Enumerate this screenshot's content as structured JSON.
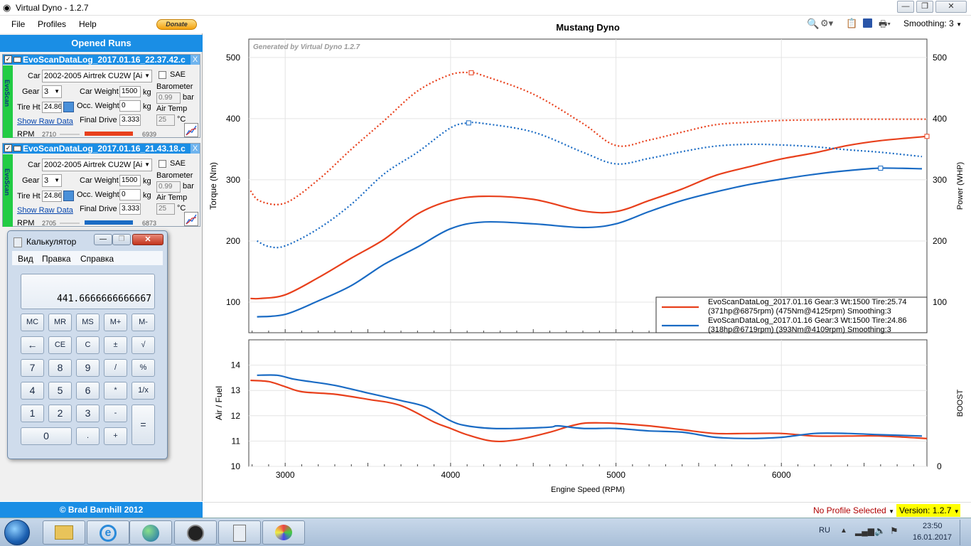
{
  "window": {
    "title": "Virtual Dyno - 1.2.7"
  },
  "menu": {
    "file": "File",
    "profiles": "Profiles",
    "help": "Help",
    "donate": "Donate"
  },
  "left": {
    "opened_runs": "Opened Runs",
    "copyright": "© Brad Barnhill 2012",
    "runs": [
      {
        "name": "EvoScanDataLog_2017.01.16_22.37.42.c",
        "close": "X",
        "side": "EvoScan",
        "car_label": "Car",
        "car": "2002-2005 Airtrek CU2W [Ai",
        "sae": "SAE",
        "gear_label": "Gear",
        "gear": "3",
        "car_weight_label": "Car Weight",
        "car_weight": "1500",
        "kg": "kg",
        "barometer_label": "Barometer",
        "barometer": "0.99",
        "bar_unit": "bar",
        "tire_label": "Tire Ht",
        "tire": "24.86",
        "occ_label": "Occ. Weight",
        "occ": "0",
        "air_label": "Air Temp",
        "air": "25",
        "deg": "°C",
        "raw": "Show Raw Data",
        "fd_label": "Final Drive",
        "fd": "3.333",
        "rpm_label": "RPM",
        "rpm_min": "2710",
        "rpm_max": "6939",
        "color": "#e8401c"
      },
      {
        "name": "EvoScanDataLog_2017.01.16_21.43.18.c",
        "close": "X",
        "side": "EvoScan",
        "car_label": "Car",
        "car": "2002-2005 Airtrek CU2W [Ai",
        "sae": "SAE",
        "gear_label": "Gear",
        "gear": "3",
        "car_weight_label": "Car Weight",
        "car_weight": "1500",
        "kg": "kg",
        "barometer_label": "Barometer",
        "barometer": "0.99",
        "bar_unit": "bar",
        "tire_label": "Tire Ht",
        "tire": "24.86",
        "occ_label": "Occ. Weight",
        "occ": "0",
        "air_label": "Air Temp",
        "air": "25",
        "deg": "°C",
        "raw": "Show Raw Data",
        "fd_label": "Final Drive",
        "fd": "3.333",
        "rpm_label": "RPM",
        "rpm_min": "2705",
        "rpm_max": "6873",
        "color": "#1a6bc4"
      }
    ]
  },
  "calculator": {
    "title": "Калькулятор",
    "menu": [
      "Вид",
      "Правка",
      "Справка"
    ],
    "display": "441.6666666666667",
    "keys": [
      [
        "MC",
        "MR",
        "MS",
        "M+",
        "M-"
      ],
      [
        "←",
        "CE",
        "C",
        "±",
        "√"
      ],
      [
        "7",
        "8",
        "9",
        "/",
        "%"
      ],
      [
        "4",
        "5",
        "6",
        "*",
        "1/x"
      ],
      [
        "1",
        "2",
        "3",
        "-",
        "="
      ],
      [
        "0",
        ".",
        "+"
      ]
    ]
  },
  "toolbar": {
    "smoothing": "Smoothing: 3"
  },
  "status": {
    "profile": "No Profile Selected",
    "version": "Version: 1.2.7"
  },
  "taskbar": {
    "lang": "RU",
    "time": "23:50",
    "date": "16.01.2017"
  },
  "chart_data": [
    {
      "type": "line",
      "title": "Mustang Dyno",
      "watermark": "Generated by Virtual Dyno 1.2.7",
      "ylabel": "Torque (Nm)",
      "y2label": "Power (WHP)",
      "xlim": [
        2780,
        6880
      ],
      "ylim": [
        50,
        530
      ],
      "yticks": [
        100,
        200,
        300,
        400,
        500
      ],
      "grid": true,
      "legend_position": "bottom-right",
      "legend": [
        {
          "line1": "EvoScanDataLog_2017.01.16 Gear:3 Wt:1500 Tire:25.74",
          "line2": "(371hp@6875rpm) (475Nm@4125rpm) Smoothing:3",
          "color": "#e8401c"
        },
        {
          "line1": "EvoScanDataLog_2017.01.16 Gear:3 Wt:1500 Tire:24.86",
          "line2": "(318hp@6719rpm) (393Nm@4109rpm) Smoothing:3",
          "color": "#1a6bc4"
        }
      ],
      "series": [
        {
          "name": "EvoScanDataLog_2017.01.16 Gear:3 Wt:1500 Tire:25.74",
          "metric": "power",
          "color": "#e8401c",
          "x": [
            2790,
            2850,
            3000,
            3200,
            3400,
            3600,
            3800,
            4000,
            4200,
            4500,
            4800,
            5000,
            5200,
            5400,
            5600,
            5800,
            6000,
            6200,
            6400,
            6600,
            6880
          ],
          "y": [
            106,
            106,
            112,
            140,
            172,
            203,
            244,
            266,
            273,
            268,
            249,
            248,
            266,
            285,
            307,
            321,
            334,
            344,
            356,
            364,
            371
          ]
        },
        {
          "name": "EvoScanDataLog_2017.01.16 Gear:3 Wt:1500 Tire:25.74",
          "metric": "torque",
          "style": "dotted",
          "color": "#e8401c",
          "x": [
            2790,
            2850,
            3000,
            3200,
            3400,
            3600,
            3800,
            4000,
            4125,
            4200,
            4500,
            4800,
            5000,
            5200,
            5400,
            5600,
            5800,
            6000,
            6200,
            6400,
            6600,
            6880
          ],
          "y": [
            282,
            265,
            262,
            300,
            350,
            397,
            445,
            472,
            475,
            470,
            440,
            392,
            356,
            365,
            378,
            390,
            394,
            397,
            398,
            399,
            399,
            399
          ]
        },
        {
          "name": "EvoScanDataLog_2017.01.16 Gear:3 Wt:1500 Tire:24.86",
          "metric": "power",
          "color": "#1a6bc4",
          "x": [
            2830,
            3000,
            3200,
            3400,
            3600,
            3800,
            4000,
            4200,
            4500,
            4800,
            5000,
            5200,
            5400,
            5600,
            5800,
            6000,
            6200,
            6400,
            6600,
            6850
          ],
          "y": [
            76,
            80,
            102,
            127,
            162,
            190,
            220,
            231,
            228,
            222,
            228,
            248,
            266,
            280,
            292,
            301,
            309,
            315,
            319,
            318
          ]
        },
        {
          "name": "EvoScanDataLog_2017.01.16 Gear:3 Wt:1500 Tire:24.86",
          "metric": "torque",
          "style": "dotted",
          "color": "#1a6bc4",
          "x": [
            2830,
            2900,
            3000,
            3200,
            3400,
            3600,
            3800,
            4000,
            4109,
            4200,
            4500,
            4800,
            5000,
            5200,
            5400,
            5600,
            5800,
            6000,
            6200,
            6400,
            6600,
            6850
          ],
          "y": [
            200,
            191,
            192,
            220,
            260,
            310,
            345,
            385,
            393,
            392,
            378,
            345,
            326,
            335,
            346,
            355,
            358,
            357,
            354,
            349,
            345,
            338
          ]
        }
      ]
    },
    {
      "type": "line",
      "xlabel": "Engine Speed (RPM)",
      "ylabel": "Air / Fuel",
      "y2label": "BOOST",
      "xlim": [
        2780,
        6880
      ],
      "ylim": [
        10,
        15
      ],
      "yticks": [
        10,
        11,
        12,
        13,
        14
      ],
      "xticks": [
        3000,
        4000,
        5000,
        6000
      ],
      "y2ticks": [
        "0"
      ],
      "grid": true,
      "series": [
        {
          "name": "EvoScanDataLog_2017.01.16 Gear:3 Wt:1500 Tire:25.74",
          "color": "#e8401c",
          "x": [
            2790,
            2900,
            3000,
            3100,
            3300,
            3500,
            3700,
            3900,
            4000,
            4100,
            4250,
            4400,
            4600,
            4700,
            4800,
            4900,
            5000,
            5200,
            5400,
            5600,
            5800,
            6000,
            6200,
            6400,
            6600,
            6880
          ],
          "y": [
            13.4,
            13.35,
            13.15,
            12.95,
            12.85,
            12.65,
            12.4,
            11.75,
            11.5,
            11.25,
            11.0,
            11.05,
            11.35,
            11.55,
            11.7,
            11.72,
            11.7,
            11.6,
            11.45,
            11.3,
            11.3,
            11.3,
            11.2,
            11.2,
            11.2,
            11.1
          ]
        },
        {
          "name": "EvoScanDataLog_2017.01.16 Gear:3 Wt:1500 Tire:24.86",
          "color": "#1a6bc4",
          "x": [
            2830,
            2950,
            3050,
            3150,
            3300,
            3500,
            3700,
            3850,
            4000,
            4100,
            4250,
            4400,
            4600,
            4650,
            4800,
            5000,
            5200,
            5400,
            5600,
            5800,
            6000,
            6200,
            6400,
            6600,
            6850
          ],
          "y": [
            13.6,
            13.6,
            13.45,
            13.35,
            13.2,
            12.9,
            12.6,
            12.35,
            11.8,
            11.6,
            11.5,
            11.5,
            11.55,
            11.6,
            11.5,
            11.5,
            11.4,
            11.35,
            11.15,
            11.1,
            11.15,
            11.3,
            11.3,
            11.25,
            11.2
          ]
        }
      ]
    }
  ]
}
